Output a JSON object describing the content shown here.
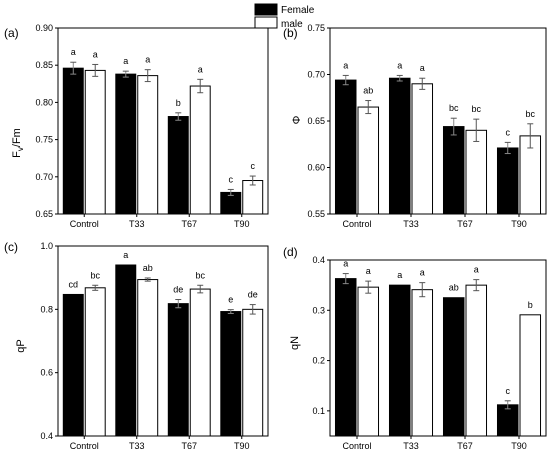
{
  "legend": {
    "entries": [
      {
        "label": "Female",
        "color": "#000000"
      },
      {
        "label": "male",
        "color": "#ffffff"
      }
    ],
    "placement": "top-center"
  },
  "chart_data": [
    {
      "type": "bar",
      "panel_label": "(a)",
      "ylabel": "Fv/Fm",
      "ylabel_parts": [
        "F",
        "v",
        "/Fm"
      ],
      "ylim": [
        0.65,
        0.9
      ],
      "yticks": [
        "0.65",
        "0.70",
        "0.75",
        "0.80",
        "0.85",
        "0.90"
      ],
      "categories": [
        "Control",
        "T33",
        "T67",
        "T90"
      ],
      "series": [
        {
          "name": "Female",
          "values": [
            0.846,
            0.838,
            0.781,
            0.679
          ],
          "errors": [
            0.008,
            0.004,
            0.005,
            0.004
          ],
          "letters": [
            "a",
            "a",
            "b",
            "c"
          ]
        },
        {
          "name": "male",
          "values": [
            0.843,
            0.836,
            0.822,
            0.695
          ],
          "errors": [
            0.008,
            0.008,
            0.009,
            0.006
          ],
          "letters": [
            "a",
            "a",
            "a",
            "c"
          ]
        }
      ]
    },
    {
      "type": "bar",
      "panel_label": "(b)",
      "ylabel": "Φ",
      "ylim": [
        0.55,
        0.75
      ],
      "yticks": [
        "0.55",
        "0.60",
        "0.65",
        "0.70",
        "0.75"
      ],
      "categories": [
        "Control",
        "T33",
        "T67",
        "T90"
      ],
      "series": [
        {
          "name": "Female",
          "values": [
            0.694,
            0.696,
            0.644,
            0.621
          ],
          "errors": [
            0.005,
            0.003,
            0.009,
            0.006
          ],
          "letters": [
            "a",
            "a",
            "bc",
            "c"
          ]
        },
        {
          "name": "male",
          "values": [
            0.665,
            0.69,
            0.64,
            0.634
          ],
          "errors": [
            0.007,
            0.006,
            0.012,
            0.013
          ],
          "letters": [
            "ab",
            "a",
            "bc",
            "bc"
          ]
        }
      ]
    },
    {
      "type": "bar",
      "panel_label": "(c)",
      "ylabel": "qP",
      "ylim": [
        0.4,
        1.0
      ],
      "yticks": [
        "0.4",
        "0.6",
        "0.8",
        "1.0"
      ],
      "categories": [
        "Control",
        "T33",
        "T67",
        "T90"
      ],
      "series": [
        {
          "name": "Female",
          "values": [
            0.847,
            0.94,
            0.818,
            0.793
          ],
          "errors": [
            0.0,
            0.0,
            0.013,
            0.006
          ],
          "letters": [
            "cd",
            "a",
            "de",
            "e"
          ]
        },
        {
          "name": "male",
          "values": [
            0.868,
            0.894,
            0.864,
            0.8
          ],
          "errors": [
            0.008,
            0.005,
            0.012,
            0.015
          ],
          "letters": [
            "bc",
            "ab",
            "bc",
            "de"
          ]
        }
      ]
    },
    {
      "type": "bar",
      "panel_label": "(d)",
      "ylabel": "qN",
      "ylim": [
        0.05,
        0.4
      ],
      "yticks": [
        "0.1",
        "0.2",
        "0.3",
        "0.4"
      ],
      "categories": [
        "Control",
        "T33",
        "T67",
        "T90"
      ],
      "series": [
        {
          "name": "Female",
          "values": [
            0.363,
            0.35,
            0.325,
            0.112
          ],
          "errors": [
            0.01,
            0.0,
            0.0,
            0.008
          ],
          "letters": [
            "a",
            "a",
            "ab",
            "c"
          ]
        },
        {
          "name": "male",
          "values": [
            0.346,
            0.341,
            0.35,
            0.291
          ],
          "errors": [
            0.012,
            0.014,
            0.011,
            0.0
          ],
          "letters": [
            "a",
            "a",
            "a",
            "b"
          ]
        }
      ]
    }
  ]
}
